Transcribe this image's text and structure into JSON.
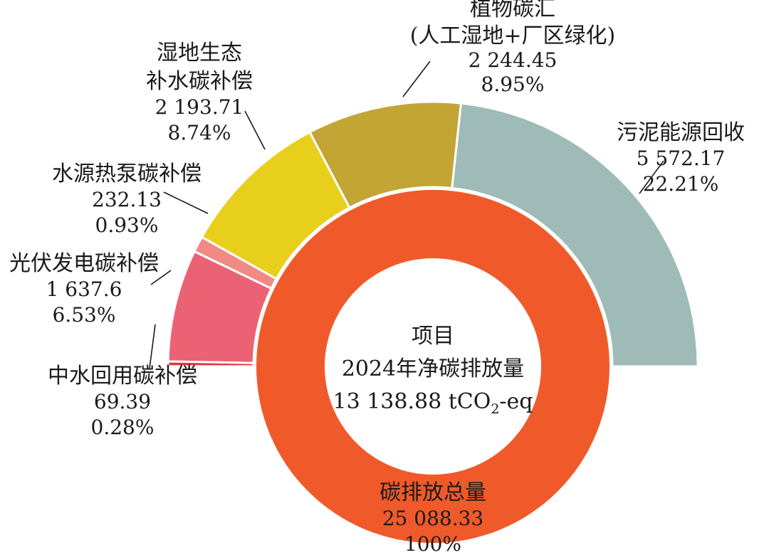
{
  "chart_data": {
    "type": "donut",
    "center": {
      "line1": "项目",
      "line2": "2024年净碳排放量",
      "value": "13 138.88",
      "unit_prefix": " tCO",
      "unit_sub": "2",
      "unit_suffix": "-eq"
    },
    "total": {
      "label": "碳排放总量",
      "value": 25088.33,
      "value_text": "25 088.33",
      "percent_text": "100%",
      "color": "#f05a2a"
    },
    "segments": [
      {
        "name": [
          "污泥能源回收"
        ],
        "value": 5572.17,
        "value_text": "5 572.17",
        "percent": 22.21,
        "percent_text": "22.21%",
        "color": "#9fbbb8"
      },
      {
        "name": [
          "植物碳汇",
          "(人工湿地+厂区绿化)"
        ],
        "value": 2244.45,
        "value_text": "2 244.45",
        "percent": 8.95,
        "percent_text": "8.95%",
        "color": "#c2a534"
      },
      {
        "name": [
          "湿地生态",
          "补水碳补偿"
        ],
        "value": 2193.71,
        "value_text": "2 193.71",
        "percent": 8.74,
        "percent_text": "8.74%",
        "color": "#e8cf1c"
      },
      {
        "name": [
          "水源热泵碳补偿"
        ],
        "value": 232.13,
        "value_text": "232.13",
        "percent": 0.93,
        "percent_text": "0.93%",
        "color": "#f08a84"
      },
      {
        "name": [
          "光伏发电碳补偿"
        ],
        "value": 1637.6,
        "value_text": "1 637.6",
        "percent": 6.53,
        "percent_text": "6.53%",
        "color": "#ec6275"
      },
      {
        "name": [
          "中水回用碳补偿"
        ],
        "value": 69.39,
        "value_text": "69.39",
        "percent": 0.28,
        "percent_text": "0.28%",
        "color": "#e3343c"
      }
    ]
  }
}
